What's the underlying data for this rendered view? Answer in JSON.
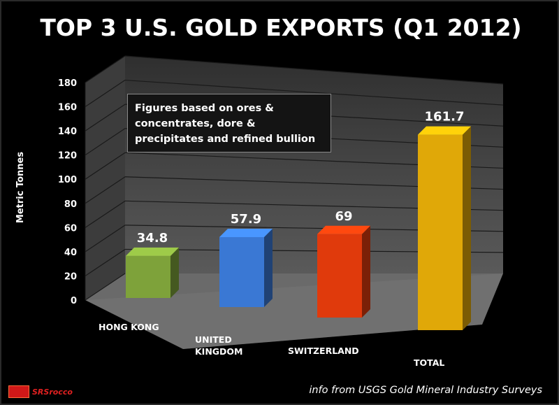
{
  "title": "TOP 3 U.S. GOLD EXPORTS (Q1 2012)",
  "annotation": {
    "line1": "Figures based on ores &",
    "line2": "concentrates, dore &",
    "line3": "precipitates and refined bullion"
  },
  "source_note": "info from USGS Gold Mineral Industry Surveys",
  "logo": {
    "mark_text": "SRSrocco",
    "text": "SRSrocco"
  },
  "chart_data": {
    "type": "bar",
    "title": "TOP 3 U.S. GOLD EXPORTS (Q1 2012)",
    "ylabel": "Metric Tonnes",
    "xlabel": "",
    "ylim": [
      0,
      180
    ],
    "yticks": [
      0,
      20,
      40,
      60,
      80,
      100,
      120,
      140,
      160,
      180
    ],
    "grid": true,
    "categories": [
      {
        "lines": [
          "HONG KONG"
        ]
      },
      {
        "lines": [
          "UNITED",
          "KINGDOM"
        ]
      },
      {
        "lines": [
          "SWITZERLAND"
        ]
      },
      {
        "lines": [
          "TOTAL"
        ]
      }
    ],
    "values": [
      34.8,
      57.9,
      69,
      161.7
    ],
    "data_labels": [
      "34.8",
      "57.9",
      "69",
      "161.7"
    ],
    "colors": [
      "#7ea23a",
      "#3a78d4",
      "#e03a0c",
      "#e0a808"
    ]
  }
}
